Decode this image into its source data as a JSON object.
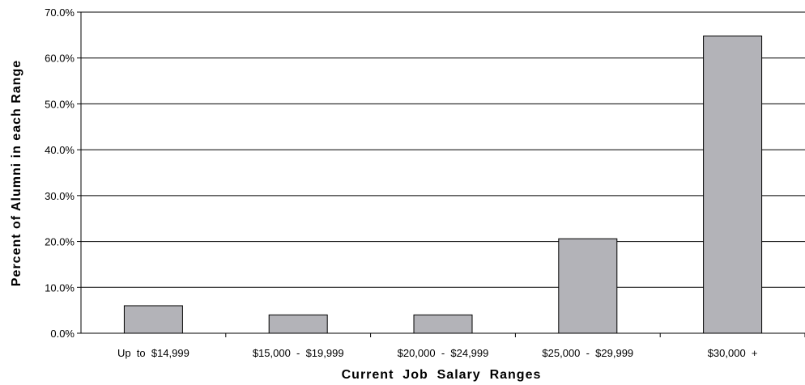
{
  "chart_data": {
    "type": "bar",
    "title": "",
    "xlabel": "Current  Job  Salary  Ranges",
    "ylabel": "Percent of Alumni in each Range",
    "categories": [
      "Up  to  $14,999",
      "$15,000  -  $19,999",
      "$20,000  -  $24,999",
      "$25,000  -  $29,999",
      "$30,000  +"
    ],
    "values": [
      6.0,
      4.0,
      4.0,
      20.6,
      64.8
    ],
    "ylim": [
      0,
      70
    ],
    "yticks": [
      "0.0%",
      "10.0%",
      "20.0%",
      "30.0%",
      "40.0%",
      "50.0%",
      "60.0%",
      "70.0%"
    ],
    "grid": true,
    "legend": "none",
    "colors": {
      "bar_fill": "#b3b3b8",
      "bar_stroke": "#000000",
      "grid": "#000000"
    }
  }
}
